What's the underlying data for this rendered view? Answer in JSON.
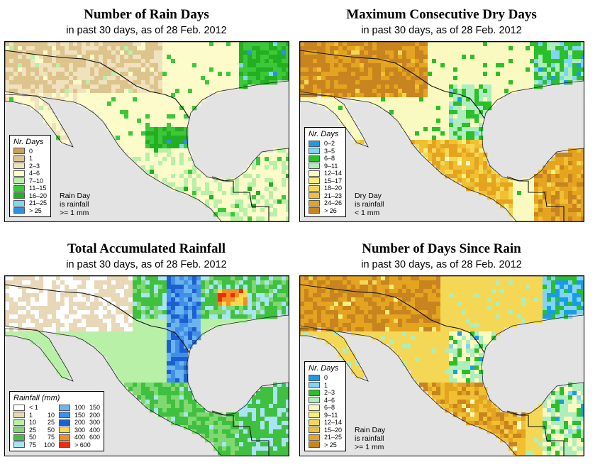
{
  "subtitle": "in past 30 days, as of  28 Feb. 2012",
  "panels": [
    {
      "title": "Number of Rain Days",
      "legend_title": "Nr. Days",
      "note": [
        "Rain Day",
        "is rainfall",
        ">= 1 mm"
      ],
      "legend": [
        {
          "label": "0",
          "color": "#c8a25a"
        },
        {
          "label": "1",
          "color": "#ddc38c"
        },
        {
          "label": "2–3",
          "color": "#efe2bd"
        },
        {
          "label": "4–6",
          "color": "#fcfbc9"
        },
        {
          "label": "7–10",
          "color": "#b8f0a8"
        },
        {
          "label": "11–15",
          "color": "#3cc83a"
        },
        {
          "label": "16–20",
          "color": "#22b020"
        },
        {
          "label": "21–25",
          "color": "#80d8f0"
        },
        {
          "label": "> 25",
          "color": "#2f8fe0"
        }
      ]
    },
    {
      "title": "Maximum Consecutive Dry Days",
      "legend_title": "Nr. Days",
      "note": [
        "Dry Day",
        "is rainfall",
        "< 1 mm"
      ],
      "legend": [
        {
          "label": "0–2",
          "color": "#1a9be8"
        },
        {
          "label": "3–5",
          "color": "#80d4f4"
        },
        {
          "label": "6–8",
          "color": "#2bbf2a"
        },
        {
          "label": "9–11",
          "color": "#aeeebc"
        },
        {
          "label": "12–14",
          "color": "#fafac0"
        },
        {
          "label": "15–17",
          "color": "#f6f07a"
        },
        {
          "label": "18–20",
          "color": "#f4d855"
        },
        {
          "label": "21–23",
          "color": "#f0c030"
        },
        {
          "label": "24–26",
          "color": "#e4a420"
        },
        {
          "label": "> 26",
          "color": "#c8841e"
        }
      ]
    },
    {
      "title": "Total Accumulated Rainfall",
      "legend_title": "Rainfall (mm)",
      "legend": [
        {
          "lo": "< 1",
          "hi": "",
          "color": "#ffffff"
        },
        {
          "lo": "1",
          "hi": "10",
          "color": "#e8d8b8"
        },
        {
          "lo": "10",
          "hi": "25",
          "color": "#b8f0a8"
        },
        {
          "lo": "25",
          "hi": "50",
          "color": "#80d870"
        },
        {
          "lo": "50",
          "hi": "75",
          "color": "#40c040"
        },
        {
          "lo": "75",
          "hi": "100",
          "color": "#a8e4f4"
        },
        {
          "lo": "100",
          "hi": "150",
          "color": "#6cb4f0"
        },
        {
          "lo": "150",
          "hi": "200",
          "color": "#4090e8"
        },
        {
          "lo": "200",
          "hi": "300",
          "color": "#1c60d0"
        },
        {
          "lo": "300",
          "hi": "400",
          "color": "#f8d850"
        },
        {
          "lo": "400",
          "hi": "600",
          "color": "#f09020"
        },
        {
          "lo": "> 600",
          "hi": "",
          "color": "#e83010"
        }
      ]
    },
    {
      "title": "Number of Days Since Rain",
      "legend_title": "Nr. Days",
      "note": [
        "Rain Day",
        "is rainfall",
        ">= 1 mm"
      ],
      "legend": [
        {
          "label": "0",
          "color": "#1a9be8"
        },
        {
          "label": "1",
          "color": "#80d4f4"
        },
        {
          "label": "2–3",
          "color": "#2bbf2a"
        },
        {
          "label": "4–6",
          "color": "#aeeebc"
        },
        {
          "label": "6–8",
          "color": "#fafac0"
        },
        {
          "label": "9–11",
          "color": "#f6f07a"
        },
        {
          "label": "12–14",
          "color": "#f4d855"
        },
        {
          "label": "15–20",
          "color": "#f0c030"
        },
        {
          "label": "21–25",
          "color": "#e4a420"
        },
        {
          "label": "> 25",
          "color": "#c8841e"
        }
      ]
    }
  ]
}
